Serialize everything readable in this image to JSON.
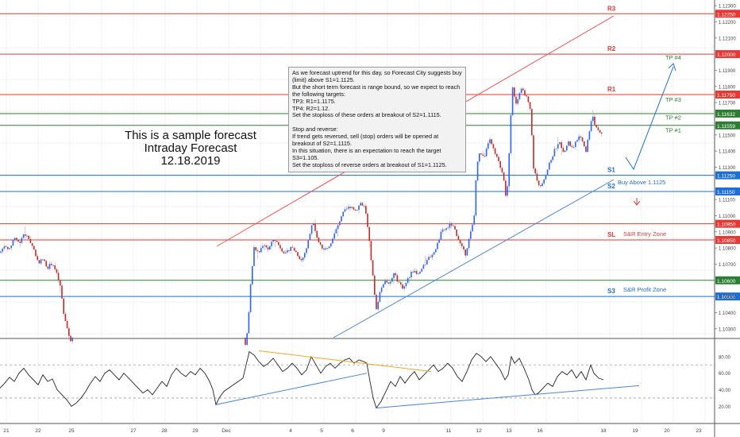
{
  "title_block": [
    "This is a sample forecast",
    "Intraday Forecast",
    "12.18.2019"
  ],
  "note": {
    "paragraphs": [
      "As we forecast uptrend for this day, so Forecast City suggests buy (limit) above S1=1.1125.",
      "But the short term forecast is range bound, so we expect to reach the following targets:",
      "TP3: R1=1.1175.",
      "TP4: R2=1.12.",
      "Set the stoploss of these orders at breakout of S2=1.1115.",
      "",
      "Stop and reverse:",
      "If trend gets reversed, sell (stop) orders will be opened at breakout of S2=1.1115.",
      "In this situation, there is an expectation to reach the target S3=1.105.",
      "Set the stoploss of reverse orders at breakout of S1=1.1125."
    ]
  },
  "colors": {
    "red": "#e53935",
    "blue": "#1e6fd0",
    "green": "#2e7d32",
    "bull": "#2962ff",
    "bear": "#c62828",
    "trend_red": "#ef5350",
    "trend_blue": "#4a86d8",
    "rsi_line": "#222222",
    "rsi_orange": "#f5a623",
    "grid": "#f0f0f0"
  },
  "chart_data": {
    "type": "candlestick",
    "instrument_precision": 5,
    "y_ticks": [
      "1.12300",
      "1.12200",
      "1.12100",
      "1.11900",
      "1.11800",
      "1.11700",
      "1.11500",
      "1.11400",
      "1.11300",
      "1.11100",
      "1.11000",
      "1.10900",
      "1.10800",
      "1.10700",
      "1.10500",
      "1.10400",
      "1.10300"
    ],
    "x_ticks": [
      "21",
      "22",
      "25",
      "27",
      "28",
      "29",
      "Dec",
      "4",
      "5",
      "6",
      "9",
      "11",
      "12",
      "13",
      "16",
      "18",
      "19",
      "20",
      "23"
    ],
    "levels": [
      {
        "label": "R3",
        "price": 1.1225,
        "tag": "1.12250",
        "color": "red"
      },
      {
        "label": "R2",
        "price": 1.12,
        "tag": "1.12000",
        "color": "red"
      },
      {
        "label": "R1",
        "price": 1.1175,
        "tag": "1.11750",
        "color": "red"
      },
      {
        "label": "",
        "price": 1.11632,
        "tag": "1.11632",
        "color": "green"
      },
      {
        "label": "",
        "price": 1.11559,
        "tag": "1.11559",
        "color": "green"
      },
      {
        "label": "S1",
        "price": 1.1125,
        "tag": "1.11250",
        "color": "blue"
      },
      {
        "label": "S2",
        "price": 1.1115,
        "tag": "1.11150",
        "color": "blue"
      },
      {
        "label": "",
        "price": 1.1095,
        "tag": "1.10950",
        "color": "red"
      },
      {
        "label": "SL",
        "price": 1.1085,
        "tag": "1.10850",
        "color": "red"
      },
      {
        "label": "",
        "price": 1.106,
        "tag": "1.10600",
        "color": "green"
      },
      {
        "label": "S3",
        "price": 1.105,
        "tag": "1.10500",
        "color": "blue"
      }
    ],
    "annotations": [
      {
        "text": "TP #4",
        "price": 1.1198,
        "color": "green"
      },
      {
        "text": "TP #3",
        "price": 1.1172,
        "color": "green"
      },
      {
        "text": "TP #2",
        "price": 1.1161,
        "color": "green"
      },
      {
        "text": "TP #1",
        "price": 1.1153,
        "color": "green"
      },
      {
        "text": "Buy Above 1.1125",
        "price": 1.1121,
        "color": "blue"
      },
      {
        "text": "S&R Entry Zone",
        "price": 1.1089,
        "color": "red"
      },
      {
        "text": "S&R Profit Zone",
        "price": 1.10545,
        "color": "blue"
      }
    ],
    "close_path": [
      [
        0,
        1.1077
      ],
      [
        6,
        1.1082
      ],
      [
        12,
        1.1079
      ],
      [
        18,
        1.1087
      ],
      [
        24,
        1.1083
      ],
      [
        30,
        1.1089
      ],
      [
        36,
        1.1086
      ],
      [
        42,
        1.108
      ],
      [
        48,
        1.1071
      ],
      [
        54,
        1.1073
      ],
      [
        60,
        1.1068
      ],
      [
        66,
        1.1071
      ],
      [
        72,
        1.1063
      ],
      [
        76,
        1.1056
      ],
      [
        80,
        1.104
      ],
      [
        84,
        1.103
      ],
      [
        90,
        1.1022
      ],
      [
        95,
        1.103
      ],
      [
        100,
        1.1025
      ],
      [
        108,
        1.1012
      ],
      [
        116,
        1.1
      ],
      [
        130,
        1.099
      ],
      [
        150,
        1.0975
      ],
      [
        180,
        1.097
      ],
      [
        220,
        1.0982
      ],
      [
        260,
        1.099
      ],
      [
        290,
        1.0995
      ],
      [
        305,
        1.1005
      ],
      [
        312,
        1.103
      ],
      [
        316,
        1.106
      ],
      [
        320,
        1.108
      ],
      [
        326,
        1.1077
      ],
      [
        332,
        1.1083
      ],
      [
        338,
        1.1079
      ],
      [
        345,
        1.1086
      ],
      [
        352,
        1.1081
      ],
      [
        360,
        1.1076
      ],
      [
        366,
        1.1081
      ],
      [
        372,
        1.1078
      ],
      [
        380,
        1.1072
      ],
      [
        386,
        1.108
      ],
      [
        390,
        1.1088
      ],
      [
        394,
        1.1098
      ],
      [
        400,
        1.1085
      ],
      [
        408,
        1.1078
      ],
      [
        416,
        1.1083
      ],
      [
        424,
        1.1092
      ],
      [
        430,
        1.11
      ],
      [
        436,
        1.1104
      ],
      [
        442,
        1.1106
      ],
      [
        448,
        1.1103
      ],
      [
        454,
        1.1108
      ],
      [
        460,
        1.1105
      ],
      [
        466,
        1.108
      ],
      [
        470,
        1.106
      ],
      [
        474,
        1.1042
      ],
      [
        478,
        1.1052
      ],
      [
        484,
        1.106
      ],
      [
        490,
        1.1057
      ],
      [
        496,
        1.1064
      ],
      [
        502,
        1.1059
      ],
      [
        508,
        1.1055
      ],
      [
        514,
        1.1061
      ],
      [
        520,
        1.1066
      ],
      [
        526,
        1.1063
      ],
      [
        534,
        1.1069
      ],
      [
        540,
        1.1074
      ],
      [
        548,
        1.1078
      ],
      [
        556,
        1.109
      ],
      [
        562,
        1.1092
      ],
      [
        568,
        1.1095
      ],
      [
        574,
        1.109
      ],
      [
        580,
        1.1082
      ],
      [
        586,
        1.1076
      ],
      [
        592,
        1.1088
      ],
      [
        597,
        1.1098
      ],
      [
        600,
        1.1128
      ],
      [
        604,
        1.114
      ],
      [
        610,
        1.1135
      ],
      [
        616,
        1.1148
      ],
      [
        622,
        1.114
      ],
      [
        628,
        1.1133
      ],
      [
        634,
        1.1125
      ],
      [
        638,
        1.1108
      ],
      [
        642,
        1.1145
      ],
      [
        645,
        1.118
      ],
      [
        650,
        1.117
      ],
      [
        656,
        1.1178
      ],
      [
        662,
        1.1175
      ],
      [
        668,
        1.1165
      ],
      [
        672,
        1.113
      ],
      [
        676,
        1.1122
      ],
      [
        680,
        1.1118
      ],
      [
        686,
        1.1124
      ],
      [
        692,
        1.1132
      ],
      [
        698,
        1.114
      ],
      [
        704,
        1.1146
      ],
      [
        710,
        1.114
      ],
      [
        716,
        1.1145
      ],
      [
        722,
        1.1141
      ],
      [
        728,
        1.1149
      ],
      [
        734,
        1.1146
      ],
      [
        738,
        1.114
      ],
      [
        742,
        1.1152
      ],
      [
        746,
        1.1163
      ],
      [
        750,
        1.1155
      ],
      [
        756,
        1.1152
      ],
      [
        760,
        1.1148
      ]
    ],
    "rsi": {
      "ticks": [
        "80.00",
        "60.00",
        "40.00",
        "20.00"
      ],
      "dashed_levels": [
        70,
        30
      ],
      "path": [
        [
          0,
          42
        ],
        [
          6,
          48
        ],
        [
          12,
          55
        ],
        [
          18,
          50
        ],
        [
          24,
          60
        ],
        [
          30,
          66
        ],
        [
          36,
          58
        ],
        [
          42,
          52
        ],
        [
          48,
          46
        ],
        [
          54,
          58
        ],
        [
          60,
          50
        ],
        [
          66,
          53
        ],
        [
          72,
          40
        ],
        [
          78,
          34
        ],
        [
          84,
          28
        ],
        [
          90,
          20
        ],
        [
          96,
          24
        ],
        [
          102,
          30
        ],
        [
          108,
          38
        ],
        [
          114,
          48
        ],
        [
          120,
          56
        ],
        [
          126,
          50
        ],
        [
          132,
          60
        ],
        [
          138,
          64
        ],
        [
          144,
          58
        ],
        [
          150,
          52
        ],
        [
          156,
          60
        ],
        [
          162,
          54
        ],
        [
          168,
          48
        ],
        [
          174,
          42
        ],
        [
          180,
          36
        ],
        [
          186,
          40
        ],
        [
          192,
          34
        ],
        [
          198,
          42
        ],
        [
          204,
          50
        ],
        [
          210,
          44
        ],
        [
          216,
          58
        ],
        [
          222,
          66
        ],
        [
          228,
          60
        ],
        [
          234,
          56
        ],
        [
          240,
          62
        ],
        [
          246,
          58
        ],
        [
          252,
          66
        ],
        [
          258,
          60
        ],
        [
          264,
          50
        ],
        [
          268,
          40
        ],
        [
          272,
          22
        ],
        [
          276,
          30
        ],
        [
          282,
          38
        ],
        [
          288,
          42
        ],
        [
          294,
          46
        ],
        [
          300,
          50
        ],
        [
          306,
          54
        ],
        [
          310,
          70
        ],
        [
          314,
          86
        ],
        [
          320,
          82
        ],
        [
          326,
          74
        ],
        [
          332,
          68
        ],
        [
          338,
          72
        ],
        [
          344,
          78
        ],
        [
          350,
          70
        ],
        [
          356,
          62
        ],
        [
          362,
          66
        ],
        [
          368,
          72
        ],
        [
          374,
          66
        ],
        [
          380,
          58
        ],
        [
          386,
          64
        ],
        [
          392,
          80
        ],
        [
          398,
          70
        ],
        [
          404,
          60
        ],
        [
          410,
          68
        ],
        [
          416,
          72
        ],
        [
          422,
          66
        ],
        [
          428,
          72
        ],
        [
          434,
          76
        ],
        [
          440,
          78
        ],
        [
          446,
          72
        ],
        [
          452,
          76
        ],
        [
          458,
          74
        ],
        [
          462,
          72
        ],
        [
          466,
          50
        ],
        [
          470,
          30
        ],
        [
          474,
          18
        ],
        [
          480,
          26
        ],
        [
          486,
          38
        ],
        [
          492,
          50
        ],
        [
          498,
          44
        ],
        [
          504,
          56
        ],
        [
          510,
          48
        ],
        [
          516,
          56
        ],
        [
          522,
          62
        ],
        [
          528,
          52
        ],
        [
          534,
          58
        ],
        [
          540,
          64
        ],
        [
          546,
          70
        ],
        [
          552,
          62
        ],
        [
          558,
          66
        ],
        [
          564,
          72
        ],
        [
          570,
          66
        ],
        [
          576,
          56
        ],
        [
          582,
          50
        ],
        [
          588,
          62
        ],
        [
          594,
          76
        ],
        [
          600,
          84
        ],
        [
          606,
          80
        ],
        [
          612,
          74
        ],
        [
          618,
          80
        ],
        [
          624,
          72
        ],
        [
          630,
          64
        ],
        [
          636,
          52
        ],
        [
          640,
          58
        ],
        [
          644,
          80
        ],
        [
          648,
          72
        ],
        [
          654,
          78
        ],
        [
          660,
          66
        ],
        [
          666,
          52
        ],
        [
          670,
          40
        ],
        [
          674,
          34
        ],
        [
          678,
          36
        ],
        [
          684,
          42
        ],
        [
          690,
          48
        ],
        [
          696,
          44
        ],
        [
          702,
          56
        ],
        [
          708,
          62
        ],
        [
          714,
          58
        ],
        [
          720,
          64
        ],
        [
          726,
          54
        ],
        [
          732,
          62
        ],
        [
          738,
          52
        ],
        [
          744,
          70
        ],
        [
          748,
          60
        ],
        [
          754,
          54
        ],
        [
          760,
          52
        ]
      ]
    }
  }
}
